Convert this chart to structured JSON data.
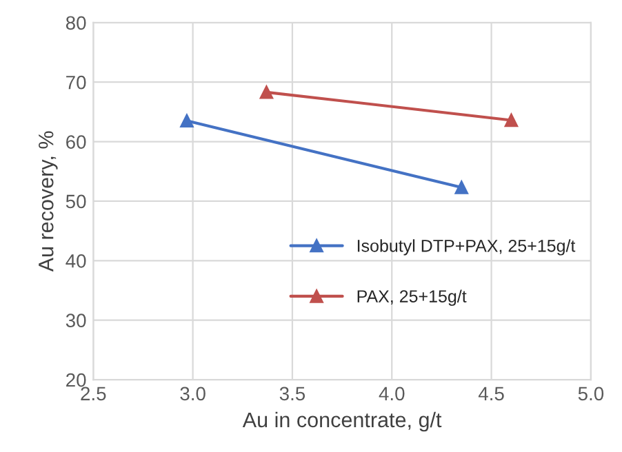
{
  "chart_data": {
    "type": "line",
    "xlabel": "Au in concentrate, g/t",
    "ylabel": "Au recovery, %",
    "series": [
      {
        "name": "Isobutyl DTP+PAX, 25+15g/t",
        "color": "#4472c4",
        "x": [
          2.97,
          4.35
        ],
        "values": [
          63.5,
          52.3
        ]
      },
      {
        "name": "PAX, 25+15g/t",
        "color": "#c0504d",
        "x": [
          3.37,
          4.6
        ],
        "values": [
          68.3,
          63.6
        ]
      }
    ],
    "xlim": [
      2.5,
      5.0
    ],
    "xticks": [
      {
        "value": 2.5,
        "label": "2.5"
      },
      {
        "value": 3.0,
        "label": "3.0"
      },
      {
        "value": 3.5,
        "label": "3.5"
      },
      {
        "value": 4.0,
        "label": "4.0"
      },
      {
        "value": 4.5,
        "label": "4.5"
      },
      {
        "value": 5.0,
        "label": "5.0"
      }
    ],
    "ylim": [
      20,
      80
    ],
    "yticks": [
      20,
      30,
      40,
      50,
      60,
      70,
      80
    ],
    "grid": true,
    "legend": "right",
    "marker": "triangle",
    "line_style": "solid"
  }
}
